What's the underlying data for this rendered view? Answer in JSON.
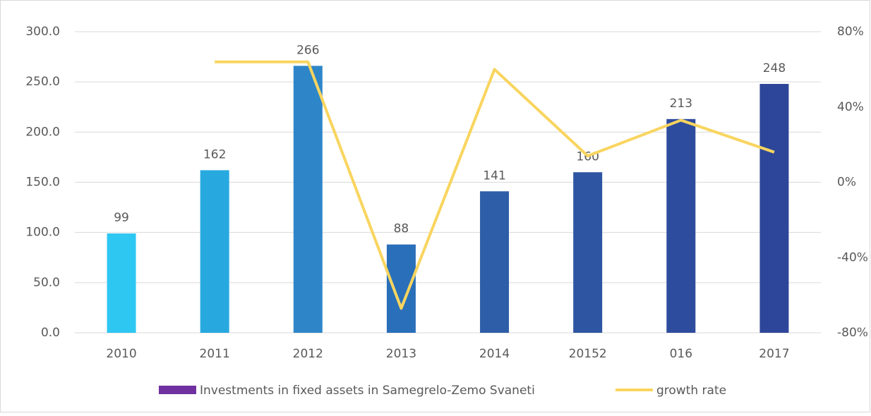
{
  "chart_data": {
    "type": "bar-line",
    "categories": [
      "2010",
      "2011",
      "2012",
      "2013",
      "2014",
      "20152",
      "016",
      "2017"
    ],
    "series": [
      {
        "name": "Investments in fixed assets in Samegrelo-Zemo Svaneti",
        "color": "#7030a0",
        "bar_colors": [
          "#2ec7f2",
          "#27a9e0",
          "#2e86c8",
          "#2a6fb9",
          "#2f5ea8",
          "#2e55a2",
          "#2e4c9e",
          "#2e4699"
        ],
        "values": [
          99,
          162,
          266,
          88,
          141,
          160,
          213,
          248
        ]
      },
      {
        "name": "growth rate",
        "color": "#f9d55f",
        "axis": "y2",
        "values": [
          null,
          64,
          64,
          -67,
          60,
          14,
          33,
          16
        ]
      }
    ],
    "ylim": [
      0,
      300
    ],
    "yticks": [
      {
        "value": 0,
        "label": "0.0"
      },
      {
        "value": 50,
        "label": "50.0"
      },
      {
        "value": 100,
        "label": "100.0"
      },
      {
        "value": 150,
        "label": "150.0"
      },
      {
        "value": 200,
        "label": "200.0"
      },
      {
        "value": 250,
        "label": "250.0"
      },
      {
        "value": 300,
        "label": "300.0"
      }
    ],
    "y2lim": [
      -80,
      80
    ],
    "y2ticks": [
      {
        "value": -80,
        "label": "-80%"
      },
      {
        "value": -40,
        "label": "-40%"
      },
      {
        "value": 0,
        "label": "0%"
      },
      {
        "value": 40,
        "label": "40%"
      },
      {
        "value": 80,
        "label": "80%"
      }
    ],
    "grid": true,
    "legend": "bottom"
  }
}
